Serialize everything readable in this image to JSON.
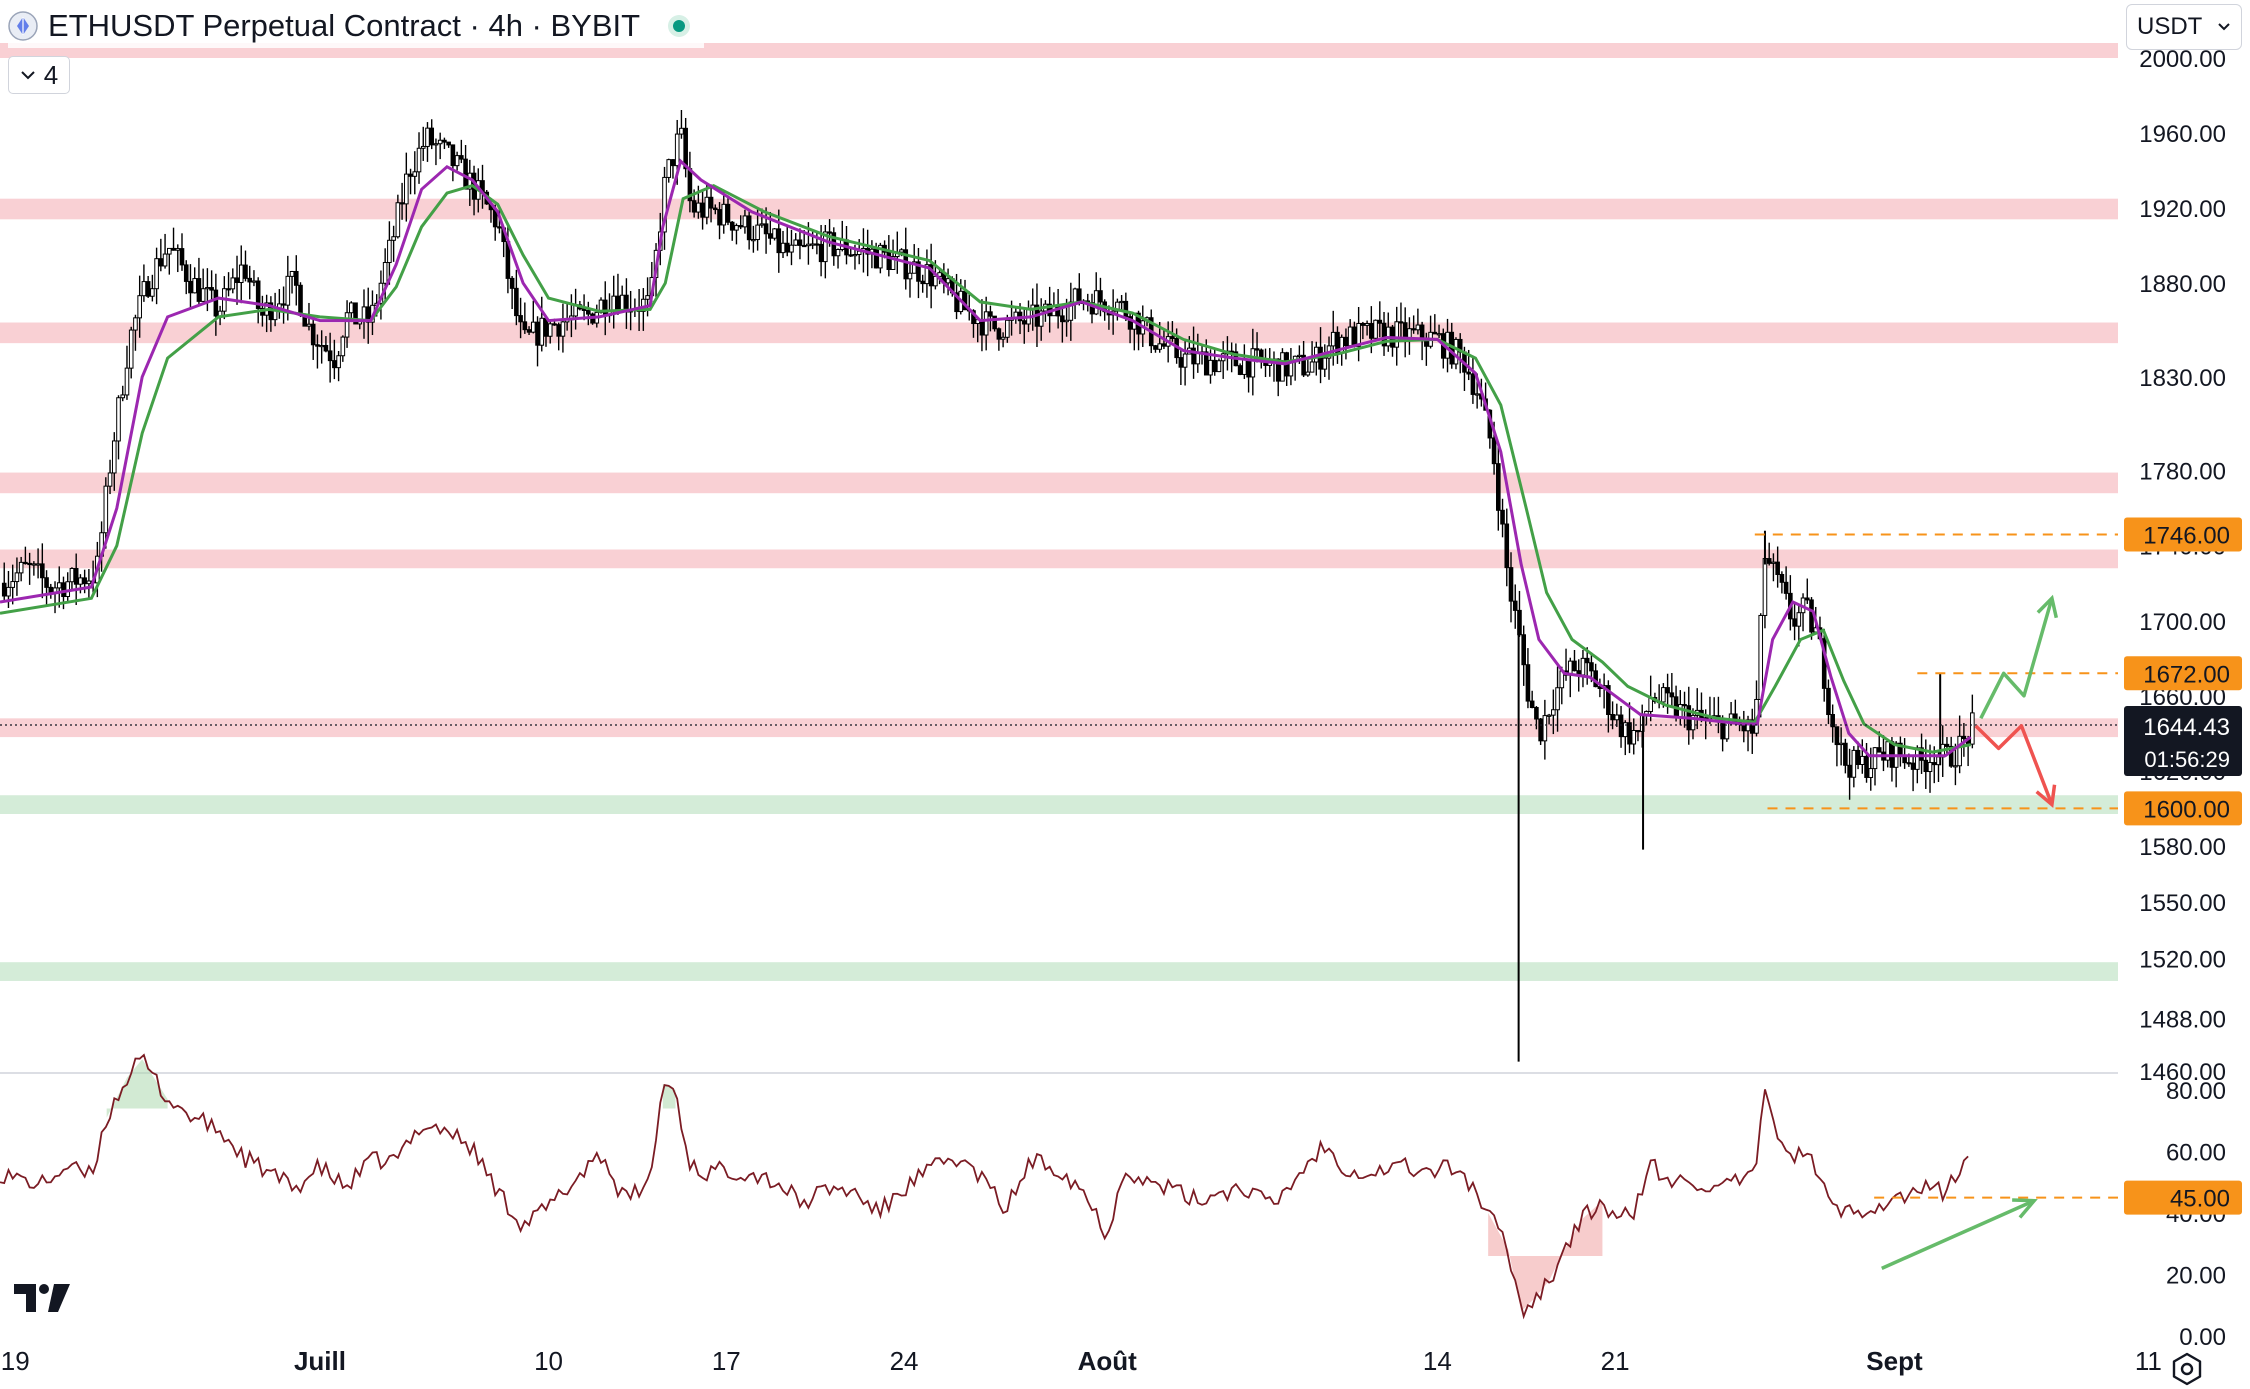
{
  "header": {
    "title": "ETHUSDT Perpetual Contract · 4h · BYBIT",
    "indicator_count": "4",
    "currency": "USDT"
  },
  "colors": {
    "resistance_zone": "#f9d0d4",
    "support_zone": "#d4ecd8",
    "ema_fast": "#9c27b0",
    "ema_slow": "#43a047",
    "rsi_line": "#7b1c24",
    "level_orange": "#f7931a",
    "arrow_up": "#66bb6a",
    "arrow_down": "#ef5350",
    "candle": "#000000"
  },
  "chart_data": {
    "type": "candlestick",
    "symbol": "ETHUSDT",
    "interval": "4h",
    "exchange": "BYBIT",
    "x_ticks": [
      "19",
      "Juill",
      "10",
      "17",
      "24",
      "Août",
      "14",
      "21",
      "Sept",
      "11"
    ],
    "x_tick_days": [
      -12,
      0,
      9,
      16,
      23,
      31,
      44,
      51,
      62,
      72
    ],
    "x_range_days": [
      -12.6,
      76
    ],
    "price_axis": {
      "ylim": [
        1460,
        2005
      ],
      "ticks": [
        2000,
        1960,
        1920,
        1880,
        1830,
        1780,
        1740,
        1700,
        1660,
        1620,
        1580,
        1550,
        1520,
        1488,
        1460
      ]
    },
    "current_price": {
      "value": 1644.43,
      "label": "1644.43",
      "countdown": "01:56:29"
    },
    "price_levels": [
      {
        "value": 1746,
        "label": "1746.00",
        "from_day": 56.5
      },
      {
        "value": 1672,
        "label": "1672.00",
        "from_day": 62.9
      },
      {
        "value": 1600,
        "label": "1600.00",
        "from_day": 57
      }
    ],
    "resistance_zones": [
      [
        2000,
        2008
      ],
      [
        1914,
        1925
      ],
      [
        1848,
        1859
      ],
      [
        1768,
        1779
      ],
      [
        1728,
        1738
      ],
      [
        1638,
        1648
      ]
    ],
    "support_zones": [
      [
        1597,
        1607
      ],
      [
        1508,
        1518
      ]
    ],
    "price_path": [
      [
        -12.6,
        1720
      ],
      [
        -11.5,
        1728
      ],
      [
        -10.6,
        1718
      ],
      [
        -9.6,
        1722
      ],
      [
        -8.8,
        1725
      ],
      [
        -8.2,
        1790
      ],
      [
        -7.5,
        1850
      ],
      [
        -6.8,
        1880
      ],
      [
        -6,
        1900
      ],
      [
        -5,
        1880
      ],
      [
        -4,
        1865
      ],
      [
        -3,
        1890
      ],
      [
        -2.3,
        1862
      ],
      [
        -1.7,
        1872
      ],
      [
        -1,
        1880
      ],
      [
        -0.4,
        1855
      ],
      [
        0.6,
        1840
      ],
      [
        1,
        1862
      ],
      [
        2,
        1860
      ],
      [
        2.8,
        1900
      ],
      [
        3.5,
        1940
      ],
      [
        4.2,
        1957
      ],
      [
        5,
        1948
      ],
      [
        6,
        1932
      ],
      [
        7,
        1912
      ],
      [
        7.6,
        1870
      ],
      [
        8,
        1848
      ],
      [
        8.8,
        1856
      ],
      [
        9.6,
        1860
      ],
      [
        10.5,
        1862
      ],
      [
        11.6,
        1875
      ],
      [
        12,
        1870
      ],
      [
        13,
        1868
      ],
      [
        13.6,
        1935
      ],
      [
        14.2,
        1960
      ],
      [
        14.6,
        1920
      ],
      [
        15.6,
        1918
      ],
      [
        16.5,
        1912
      ],
      [
        17.5,
        1905
      ],
      [
        18.5,
        1895
      ],
      [
        20,
        1900
      ],
      [
        22,
        1895
      ],
      [
        24,
        1885
      ],
      [
        25.2,
        1868
      ],
      [
        26.5,
        1856
      ],
      [
        28.5,
        1862
      ],
      [
        30,
        1872
      ],
      [
        31.3,
        1870
      ],
      [
        32.2,
        1860
      ],
      [
        33,
        1848
      ],
      [
        34,
        1840
      ],
      [
        35.5,
        1838
      ],
      [
        36.5,
        1838
      ],
      [
        38,
        1835
      ],
      [
        39,
        1836
      ],
      [
        40,
        1850
      ],
      [
        41.5,
        1853
      ],
      [
        43,
        1852
      ],
      [
        44,
        1850
      ],
      [
        45,
        1840
      ],
      [
        45.6,
        1822
      ],
      [
        46.2,
        1790
      ],
      [
        46.8,
        1720
      ],
      [
        47.1,
        1700
      ],
      [
        47.6,
        1660
      ],
      [
        48,
        1640
      ],
      [
        48.5,
        1658
      ],
      [
        49,
        1670
      ],
      [
        49.5,
        1676
      ],
      [
        50,
        1672
      ],
      [
        50.6,
        1660
      ],
      [
        51,
        1648
      ],
      [
        51.5,
        1640
      ],
      [
        52,
        1640
      ],
      [
        52.4,
        1660
      ],
      [
        53,
        1656
      ],
      [
        54,
        1648
      ],
      [
        55,
        1645
      ],
      [
        56,
        1644
      ],
      [
        56.5,
        1640
      ],
      [
        56.9,
        1735
      ],
      [
        57.4,
        1720
      ],
      [
        58,
        1700
      ],
      [
        58.5,
        1706
      ],
      [
        59,
        1690
      ],
      [
        59.5,
        1650
      ],
      [
        60,
        1625
      ],
      [
        60.6,
        1622
      ],
      [
        61.5,
        1628
      ],
      [
        62,
        1630
      ],
      [
        63,
        1624
      ],
      [
        63.6,
        1630
      ],
      [
        64,
        1626
      ],
      [
        64.7,
        1634
      ],
      [
        65.1,
        1644
      ]
    ],
    "ema_fast_path": [
      [
        -12.6,
        1710
      ],
      [
        -9,
        1718
      ],
      [
        -8,
        1760
      ],
      [
        -7,
        1830
      ],
      [
        -6,
        1862
      ],
      [
        -4,
        1872
      ],
      [
        -2,
        1868
      ],
      [
        0,
        1860
      ],
      [
        2,
        1860
      ],
      [
        3,
        1890
      ],
      [
        4,
        1930
      ],
      [
        5,
        1942
      ],
      [
        6,
        1935
      ],
      [
        7,
        1918
      ],
      [
        8,
        1880
      ],
      [
        9,
        1860
      ],
      [
        11,
        1862
      ],
      [
        13,
        1868
      ],
      [
        13.5,
        1910
      ],
      [
        14.2,
        1945
      ],
      [
        15,
        1935
      ],
      [
        17,
        1918
      ],
      [
        20,
        1902
      ],
      [
        24,
        1888
      ],
      [
        26,
        1860
      ],
      [
        28,
        1862
      ],
      [
        30,
        1870
      ],
      [
        32,
        1860
      ],
      [
        34,
        1844
      ],
      [
        36,
        1840
      ],
      [
        38,
        1837
      ],
      [
        40,
        1844
      ],
      [
        42,
        1851
      ],
      [
        44,
        1850
      ],
      [
        45.5,
        1832
      ],
      [
        46.5,
        1790
      ],
      [
        47.3,
        1730
      ],
      [
        48,
        1690
      ],
      [
        49,
        1672
      ],
      [
        50,
        1670
      ],
      [
        51,
        1660
      ],
      [
        52,
        1650
      ],
      [
        54,
        1648
      ],
      [
        56,
        1645
      ],
      [
        56.6,
        1645
      ],
      [
        57.2,
        1690
      ],
      [
        58,
        1710
      ],
      [
        58.8,
        1705
      ],
      [
        59.5,
        1670
      ],
      [
        60.2,
        1640
      ],
      [
        61,
        1628
      ],
      [
        62.5,
        1628
      ],
      [
        64,
        1628
      ],
      [
        65,
        1638
      ]
    ],
    "ema_slow_path": [
      [
        -12.6,
        1704
      ],
      [
        -9,
        1712
      ],
      [
        -8,
        1740
      ],
      [
        -7,
        1800
      ],
      [
        -6,
        1840
      ],
      [
        -4,
        1862
      ],
      [
        -2,
        1866
      ],
      [
        0,
        1862
      ],
      [
        2,
        1860
      ],
      [
        3,
        1878
      ],
      [
        4,
        1910
      ],
      [
        5,
        1928
      ],
      [
        6,
        1932
      ],
      [
        7,
        1922
      ],
      [
        8,
        1895
      ],
      [
        9,
        1872
      ],
      [
        11,
        1865
      ],
      [
        13,
        1866
      ],
      [
        13.6,
        1880
      ],
      [
        14.3,
        1925
      ],
      [
        15.5,
        1932
      ],
      [
        17.5,
        1918
      ],
      [
        20,
        1905
      ],
      [
        24,
        1892
      ],
      [
        26,
        1870
      ],
      [
        28,
        1866
      ],
      [
        30,
        1870
      ],
      [
        32,
        1864
      ],
      [
        34,
        1850
      ],
      [
        36,
        1842
      ],
      [
        38,
        1838
      ],
      [
        40,
        1842
      ],
      [
        42,
        1849
      ],
      [
        44,
        1850
      ],
      [
        45.5,
        1840
      ],
      [
        46.5,
        1815
      ],
      [
        47.5,
        1760
      ],
      [
        48.3,
        1715
      ],
      [
        49.3,
        1690
      ],
      [
        50.5,
        1678
      ],
      [
        51.5,
        1665
      ],
      [
        53,
        1655
      ],
      [
        55,
        1648
      ],
      [
        56.5,
        1646
      ],
      [
        57.3,
        1665
      ],
      [
        58.3,
        1690
      ],
      [
        59.2,
        1695
      ],
      [
        60,
        1668
      ],
      [
        60.8,
        1645
      ],
      [
        62,
        1634
      ],
      [
        63.5,
        1630
      ],
      [
        65,
        1634
      ]
    ],
    "spikes": [
      {
        "day": 47.2,
        "low": 1465
      },
      {
        "day": 52.1,
        "low": 1578
      },
      {
        "day": 56.9,
        "high": 1748
      },
      {
        "day": 63.8,
        "high": 1672
      }
    ],
    "projections": {
      "bullish": [
        [
          65.4,
          1648
        ],
        [
          66.3,
          1672
        ],
        [
          67.1,
          1660
        ],
        [
          68.2,
          1712
        ]
      ],
      "bearish": [
        [
          65.2,
          1644
        ],
        [
          66.1,
          1632
        ],
        [
          67,
          1644
        ],
        [
          68.2,
          1602
        ]
      ]
    },
    "rsi": {
      "ylim": [
        0,
        85
      ],
      "ticks": [
        80,
        60,
        40,
        20,
        0
      ],
      "tick_labels": [
        "80.00",
        "60.00",
        "40.00",
        "20.00",
        "0.00"
      ],
      "level": {
        "value": 45,
        "label": "45.00",
        "from_day": 61.2
      },
      "trendline": [
        [
          61.5,
          22
        ],
        [
          67.5,
          44
        ]
      ],
      "path": [
        [
          -12.6,
          53
        ],
        [
          -11,
          49
        ],
        [
          -10,
          55
        ],
        [
          -9,
          52
        ],
        [
          -8.4,
          71
        ],
        [
          -7.6,
          84
        ],
        [
          -7,
          90
        ],
        [
          -6,
          77
        ],
        [
          -5,
          71
        ],
        [
          -4,
          67
        ],
        [
          -3,
          58
        ],
        [
          -2,
          53
        ],
        [
          -1,
          48
        ],
        [
          0,
          55
        ],
        [
          1,
          48
        ],
        [
          2,
          57
        ],
        [
          3,
          57
        ],
        [
          4,
          69
        ],
        [
          5,
          67
        ],
        [
          6,
          61
        ],
        [
          7,
          47
        ],
        [
          8,
          36
        ],
        [
          9,
          42
        ],
        [
          10,
          50
        ],
        [
          11,
          60
        ],
        [
          12,
          44
        ],
        [
          13,
          50
        ],
        [
          13.5,
          82
        ],
        [
          14,
          80
        ],
        [
          14.5,
          57
        ],
        [
          15,
          53
        ],
        [
          16,
          54
        ],
        [
          17,
          53
        ],
        [
          18,
          50
        ],
        [
          19,
          43
        ],
        [
          20,
          48
        ],
        [
          21,
          47
        ],
        [
          22,
          40
        ],
        [
          23,
          48
        ],
        [
          24,
          54
        ],
        [
          25,
          58
        ],
        [
          26,
          52
        ],
        [
          27,
          41
        ],
        [
          28,
          57
        ],
        [
          29,
          55
        ],
        [
          30,
          48
        ],
        [
          31,
          33
        ],
        [
          31.7,
          55
        ],
        [
          32.5,
          50
        ],
        [
          33.5,
          48
        ],
        [
          34.5,
          44
        ],
        [
          35.5,
          47
        ],
        [
          36.5,
          48
        ],
        [
          37.5,
          42
        ],
        [
          38.5,
          52
        ],
        [
          39.5,
          62
        ],
        [
          40.5,
          54
        ],
        [
          41.5,
          53
        ],
        [
          42.5,
          56
        ],
        [
          43.5,
          53
        ],
        [
          44.5,
          55
        ],
        [
          45,
          53
        ],
        [
          46,
          40
        ],
        [
          46.8,
          28
        ],
        [
          47.3,
          8
        ],
        [
          47.8,
          12
        ],
        [
          48.4,
          18
        ],
        [
          49,
          28
        ],
        [
          49.7,
          38
        ],
        [
          50.5,
          44
        ],
        [
          51,
          37
        ],
        [
          51.8,
          41
        ],
        [
          52.4,
          57
        ],
        [
          53,
          49
        ],
        [
          54,
          51
        ],
        [
          55,
          47
        ],
        [
          56,
          51
        ],
        [
          56.5,
          52
        ],
        [
          56.9,
          78
        ],
        [
          57.5,
          65
        ],
        [
          58,
          58
        ],
        [
          58.5,
          60
        ],
        [
          59,
          53
        ],
        [
          59.5,
          42
        ],
        [
          60.2,
          40
        ],
        [
          61,
          42
        ],
        [
          62,
          44
        ],
        [
          62.8,
          47
        ],
        [
          63.5,
          48
        ],
        [
          64,
          47
        ],
        [
          64.5,
          53
        ],
        [
          65,
          58
        ]
      ]
    }
  }
}
